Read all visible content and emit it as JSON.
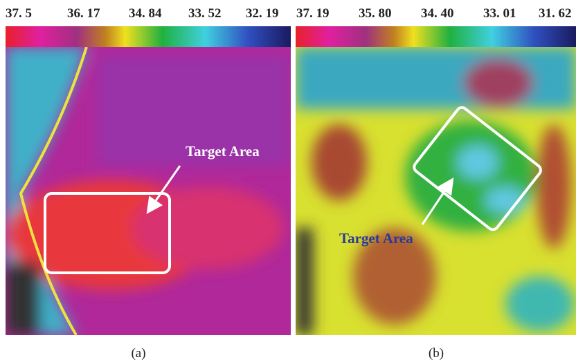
{
  "panels": [
    {
      "scale_labels": [
        "37. 5",
        "36. 17",
        "34. 84",
        "33. 52",
        "32. 19"
      ],
      "annotation": "Target Area",
      "caption": "(a)"
    },
    {
      "scale_labels": [
        "37. 19",
        "35. 80",
        "34. 40",
        "33. 01",
        "31. 62"
      ],
      "annotation": "Target Area",
      "caption": "(b)"
    }
  ]
}
